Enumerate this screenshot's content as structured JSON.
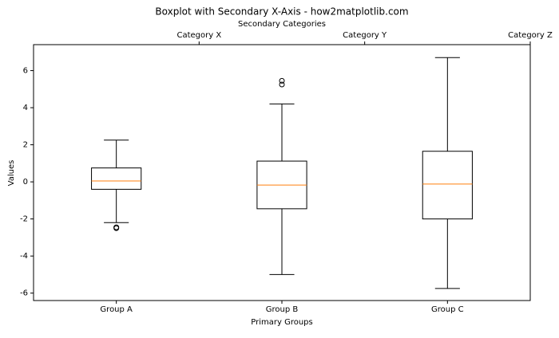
{
  "chart_data": {
    "type": "box",
    "title": "Boxplot with Secondary X-Axis - how2matplotlib.com",
    "x_label": "Primary Groups",
    "y_label": "Values",
    "x2_label": "Secondary Categories",
    "categories": [
      "Group A",
      "Group B",
      "Group C"
    ],
    "boxes": [
      {
        "whislo": -2.2,
        "q1": -0.4,
        "med": 0.05,
        "q3": 0.75,
        "whishi": 2.25,
        "fliers": [
          -2.45,
          -2.5
        ]
      },
      {
        "whislo": -5.0,
        "q1": -1.45,
        "med": -0.17,
        "q3": 1.12,
        "whishi": 4.2,
        "fliers": [
          5.45,
          5.25
        ]
      },
      {
        "whislo": -5.75,
        "q1": -2.0,
        "med": -0.12,
        "q3": 1.65,
        "whishi": 6.7,
        "fliers": []
      }
    ],
    "box_color": "#000000",
    "median_color": "#ff7f0e",
    "xlim": [
      0.5,
      3.5
    ],
    "x2ticks": [
      {
        "value": 1.5,
        "label": "Category X"
      },
      {
        "value": 2.5,
        "label": "Category Y"
      },
      {
        "value": 3.5,
        "label": "Category Z"
      }
    ],
    "ylim": [
      -6.4,
      7.4
    ],
    "yticks": [
      -6,
      -4,
      -2,
      0,
      2,
      4,
      6
    ]
  }
}
